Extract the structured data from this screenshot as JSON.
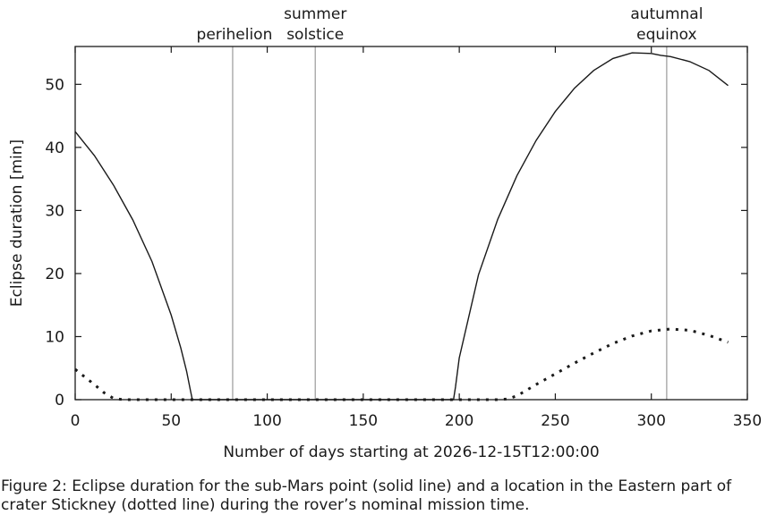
{
  "chart_data": {
    "type": "line",
    "xlabel": "Number of days starting at 2026-12-15T12:00:00",
    "ylabel": "Eclipse duration [min]",
    "xlim": [
      0,
      350
    ],
    "ylim": [
      0,
      56
    ],
    "x_ticks": [
      0,
      50,
      100,
      150,
      200,
      250,
      300,
      350
    ],
    "y_ticks": [
      0,
      10,
      20,
      30,
      40,
      50
    ],
    "grid": false,
    "legend": "none",
    "annotations": [
      {
        "x": 82,
        "lines": [
          "perihelion"
        ]
      },
      {
        "x": 125,
        "lines": [
          "summer",
          "solstice"
        ]
      },
      {
        "x": 308,
        "lines": [
          "autumnal",
          "equinox"
        ]
      }
    ],
    "series": [
      {
        "style": "solid",
        "x": [
          0,
          10,
          20,
          30,
          40,
          50,
          55,
          58,
          60,
          61,
          197,
          198,
          200,
          210,
          220,
          230,
          240,
          250,
          260,
          270,
          280,
          290,
          300,
          305,
          310,
          320,
          330,
          340
        ],
        "y": [
          42.5,
          38.7,
          34.0,
          28.5,
          21.9,
          13.4,
          8.2,
          4.5,
          1.5,
          0,
          0,
          2.0,
          6.6,
          19.8,
          28.6,
          35.5,
          41.1,
          45.7,
          49.4,
          52.2,
          54.1,
          55.0,
          54.9,
          54.6,
          54.4,
          53.6,
          52.2,
          49.8
        ]
      },
      {
        "style": "dotted",
        "x": [
          0,
          5,
          10,
          15,
          20,
          25,
          30,
          60,
          100,
          150,
          200,
          220,
          225,
          230,
          240,
          250,
          260,
          270,
          280,
          290,
          300,
          310,
          320,
          330,
          340
        ],
        "y": [
          4.8,
          3.6,
          2.4,
          1.1,
          0.2,
          0,
          0,
          0,
          0,
          0,
          0,
          0,
          0.1,
          0.6,
          2.4,
          4.1,
          5.8,
          7.4,
          8.9,
          10.1,
          10.9,
          11.2,
          11.0,
          10.2,
          9.1
        ]
      }
    ]
  },
  "caption": "Figure 2: Eclipse duration for the sub-Mars point (solid line) and a location in the Eastern part of crater Stickney (dotted line) during the rover’s nominal mission time."
}
